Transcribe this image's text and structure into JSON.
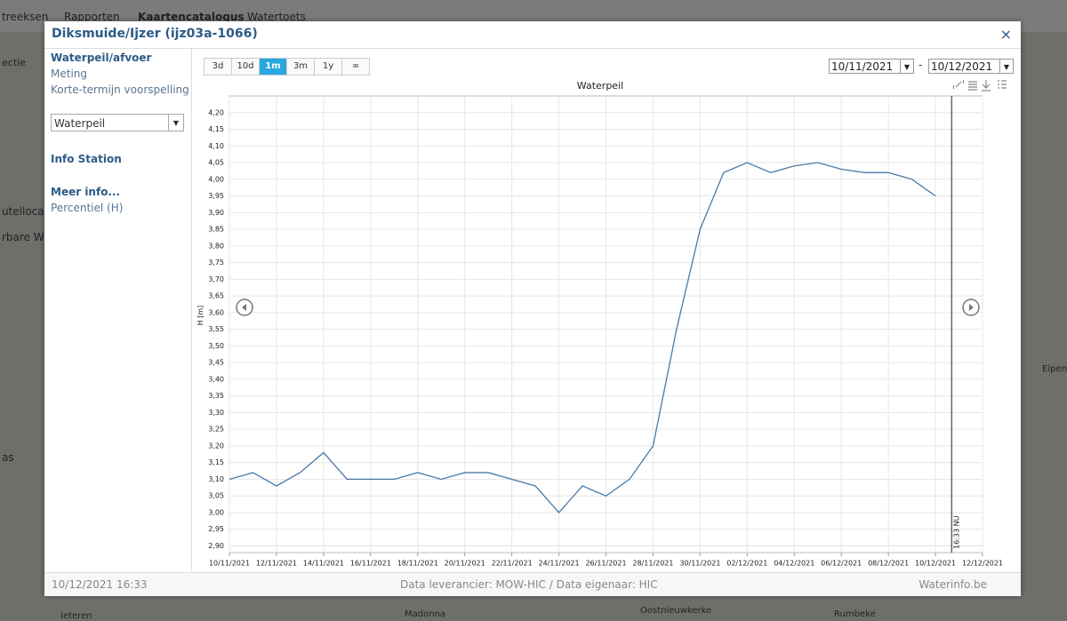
{
  "background": {
    "nav": [
      "treeksen",
      "Rapporten",
      "Kaartencatalogus",
      "Watertoets"
    ],
    "side": [
      "ectie",
      "utellocat",
      "rbare Wat",
      "as"
    ],
    "map": [
      "Ieteren",
      "Madonna",
      "Oostnieuwkerke",
      "Rumbeke",
      "Eipen"
    ]
  },
  "dialog": {
    "title": "Diksmuide/Ijzer (ijz03a-1066)",
    "close": "×"
  },
  "sidebar": {
    "section": "Waterpeil/afvoer",
    "links": [
      "Meting",
      "Korte-termijn voorspelling"
    ],
    "select": "Waterpeil",
    "info": "Info Station",
    "more": "Meer info...",
    "percentile": "Percentiel (H)"
  },
  "toolbar": {
    "ranges": [
      "3d",
      "10d",
      "1m",
      "3m",
      "1y",
      "∞"
    ],
    "active": "1m",
    "date_from": "10/11/2021",
    "date_sep": "-",
    "date_to": "10/12/2021"
  },
  "chart_data": {
    "type": "line",
    "title": "Waterpeil",
    "y_label": "H [m]",
    "color": "#4a7aa8",
    "grid": true,
    "x": [
      "10/11/2021",
      "11/11/2021",
      "12/11/2021",
      "13/11/2021",
      "14/11/2021",
      "15/11/2021",
      "16/11/2021",
      "17/11/2021",
      "18/11/2021",
      "19/11/2021",
      "20/11/2021",
      "21/11/2021",
      "22/11/2021",
      "23/11/2021",
      "24/11/2021",
      "25/11/2021",
      "26/11/2021",
      "27/11/2021",
      "28/11/2021",
      "29/11/2021",
      "30/11/2021",
      "01/12/2021",
      "02/12/2021",
      "03/12/2021",
      "04/12/2021",
      "05/12/2021",
      "06/12/2021",
      "07/12/2021",
      "08/12/2021",
      "09/12/2021",
      "10/12/2021"
    ],
    "values": [
      3.1,
      3.12,
      3.08,
      3.12,
      3.18,
      3.1,
      3.1,
      3.1,
      3.12,
      3.1,
      3.12,
      3.12,
      3.1,
      3.08,
      3.0,
      3.08,
      3.05,
      3.1,
      3.2,
      3.55,
      3.85,
      4.02,
      4.05,
      4.02,
      4.04,
      4.05,
      4.03,
      4.02,
      4.02,
      4.0,
      3.95
    ],
    "xlim": [
      "10/11/2021",
      "12/12/2021"
    ],
    "xticks": [
      "10/11/2021",
      "12/11/2021",
      "14/11/2021",
      "16/11/2021",
      "18/11/2021",
      "20/11/2021",
      "22/11/2021",
      "24/11/2021",
      "26/11/2021",
      "28/11/2021",
      "30/11/2021",
      "02/12/2021",
      "04/12/2021",
      "06/12/2021",
      "08/12/2021",
      "10/12/2021",
      "12/12/2021"
    ],
    "ylim": [
      2.88,
      4.25
    ],
    "yticks": [
      {
        "value": 2.9,
        "label": "2,90"
      },
      {
        "value": 2.95,
        "label": "2,95"
      },
      {
        "value": 3.0,
        "label": "3,00"
      },
      {
        "value": 3.05,
        "label": "3,05"
      },
      {
        "value": 3.1,
        "label": "3,10"
      },
      {
        "value": 3.15,
        "label": "3,15"
      },
      {
        "value": 3.2,
        "label": "3,20"
      },
      {
        "value": 3.25,
        "label": "3,25"
      },
      {
        "value": 3.3,
        "label": "3,30"
      },
      {
        "value": 3.35,
        "label": "3,35"
      },
      {
        "value": 3.4,
        "label": "3,40"
      },
      {
        "value": 3.45,
        "label": "3,45"
      },
      {
        "value": 3.5,
        "label": "3,50"
      },
      {
        "value": 3.55,
        "label": "3,55"
      },
      {
        "value": 3.6,
        "label": "3,60"
      },
      {
        "value": 3.65,
        "label": "3,65"
      },
      {
        "value": 3.7,
        "label": "3,70"
      },
      {
        "value": 3.75,
        "label": "3,75"
      },
      {
        "value": 3.8,
        "label": "3,80"
      },
      {
        "value": 3.85,
        "label": "3,85"
      },
      {
        "value": 3.9,
        "label": "3,90"
      },
      {
        "value": 3.95,
        "label": "3,95"
      },
      {
        "value": 4.0,
        "label": "4,00"
      },
      {
        "value": 4.05,
        "label": "4,05"
      },
      {
        "value": 4.1,
        "label": "4,10"
      },
      {
        "value": 4.15,
        "label": "4,15"
      },
      {
        "value": 4.2,
        "label": "4,20"
      }
    ],
    "now": "10/12/2021 16:33",
    "now_label": "16:33 NU"
  },
  "footer": {
    "source": "Data leverancier: MOW-HIC / Data eigenaar: HIC",
    "site": "Waterinfo.be"
  }
}
